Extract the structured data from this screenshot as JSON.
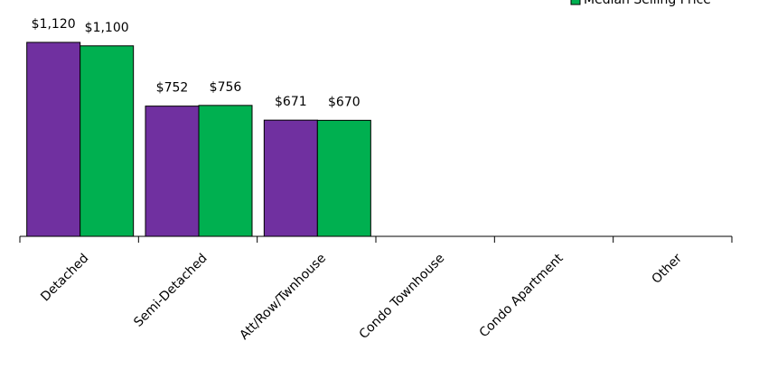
{
  "chart_data": {
    "type": "bar",
    "categories": [
      "Detached",
      "Semi-Detached",
      "Att/Row/Twnhouse",
      "Condo Townhouse",
      "Condo Apartment",
      "Other"
    ],
    "series": [
      {
        "color": "#7030a0",
        "values": [
          1120,
          752,
          671,
          null,
          null,
          null
        ],
        "value_labels": [
          "$1,120",
          "$752",
          "$671",
          null,
          null,
          null
        ]
      },
      {
        "name": "Median Selling Price",
        "color": "#00b050",
        "values": [
          1100,
          756,
          670,
          null,
          null,
          null
        ],
        "value_labels": [
          "$1,100",
          "$756",
          "$670",
          null,
          null,
          null
        ]
      }
    ],
    "legend": "top-right"
  }
}
